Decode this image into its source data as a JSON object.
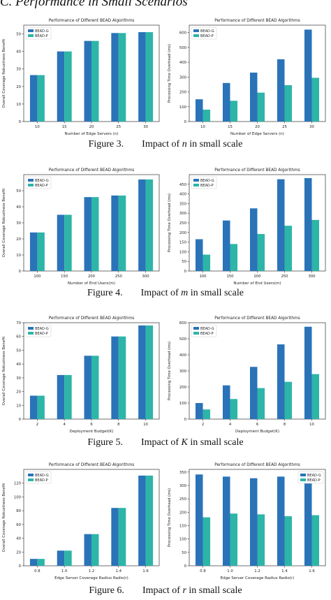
{
  "section_heading": "C.  Performance in Small Scenarios",
  "colors": {
    "bead_g": "#2a73b8",
    "bead_p": "#2db5a8"
  },
  "legend": [
    "BEAD-G",
    "BEAD-P"
  ],
  "figures": [
    {
      "label": "Figure 3.",
      "pre": "Impact of ",
      "var": "n",
      "post": " in small scale"
    },
    {
      "label": "Figure 4.",
      "pre": "Impact of ",
      "var": "m",
      "post": " in small scale"
    },
    {
      "label": "Figure 5.",
      "pre": "Impact of ",
      "var": "K",
      "post": " in small scale"
    },
    {
      "label": "Figure 6.",
      "pre": "Impact of ",
      "var": "r",
      "post": " in small scale"
    }
  ],
  "chart_data": [
    {
      "id": "fig3-benefit",
      "type": "bar",
      "title": "Performance of Different BEAD Algorithms",
      "xlabel": "Number of Edge Servers (n)",
      "ylabel": "Overall Coverage Robustness Benefit",
      "categories": [
        "10",
        "15",
        "20",
        "25",
        "30"
      ],
      "ylim": [
        0,
        55
      ],
      "yticks": [
        0,
        10,
        20,
        30,
        40,
        50
      ],
      "legend_position": "top-left",
      "series": [
        {
          "name": "BEAD-G",
          "values": [
            26.5,
            40,
            46,
            50.5,
            51
          ]
        },
        {
          "name": "BEAD-P",
          "values": [
            26.5,
            40,
            46,
            50.5,
            51
          ]
        }
      ]
    },
    {
      "id": "fig3-time",
      "type": "bar",
      "title": "Performance of Different BEAD Algorithms",
      "xlabel": "Number of Edge Servers (n)",
      "ylabel": "Processing Time Overhead (ms)",
      "categories": [
        "10",
        "15",
        "20",
        "25",
        "30"
      ],
      "ylim": [
        0,
        650
      ],
      "yticks": [
        0,
        100,
        200,
        300,
        400,
        500,
        600
      ],
      "legend_position": "top-left",
      "series": [
        {
          "name": "BEAD-G",
          "values": [
            150,
            260,
            330,
            420,
            620
          ]
        },
        {
          "name": "BEAD-P",
          "values": [
            80,
            140,
            195,
            245,
            295
          ]
        }
      ]
    },
    {
      "id": "fig4-benefit",
      "type": "bar",
      "title": "Performance of Different BEAD Algorithms",
      "xlabel": "Number of End Users(m)",
      "ylabel": "Overall Coverage Robustness Benefit",
      "categories": [
        "100",
        "150",
        "200",
        "250",
        "300"
      ],
      "ylim": [
        0,
        60
      ],
      "yticks": [
        0,
        10,
        20,
        30,
        40,
        50
      ],
      "legend_position": "top-left",
      "series": [
        {
          "name": "BEAD-G",
          "values": [
            24,
            35,
            46,
            47,
            57
          ]
        },
        {
          "name": "BEAD-P",
          "values": [
            24,
            35,
            46,
            47,
            57
          ]
        }
      ]
    },
    {
      "id": "fig4-time",
      "type": "bar",
      "title": "Performance of Different BEAD Algorithms",
      "xlabel": "Number of End Users(m)",
      "ylabel": "Processing Time Overhead (ms)",
      "categories": [
        "100",
        "150",
        "200",
        "250",
        "300"
      ],
      "ylim": [
        0,
        500
      ],
      "yticks": [
        0,
        50,
        100,
        150,
        200,
        250,
        300,
        350,
        400,
        450
      ],
      "legend_position": "top-left",
      "series": [
        {
          "name": "BEAD-G",
          "values": [
            165,
            262,
            325,
            476,
            482
          ]
        },
        {
          "name": "BEAD-P",
          "values": [
            85,
            140,
            192,
            235,
            265
          ]
        }
      ]
    },
    {
      "id": "fig5-benefit",
      "type": "bar",
      "title": "Performance of Different BEAD Algorithms",
      "xlabel": "Deployment Budget(K)",
      "ylabel": "Overall Coverage Robustness Benefit",
      "categories": [
        "2",
        "4",
        "6",
        "8",
        "10"
      ],
      "ylim": [
        0,
        70
      ],
      "yticks": [
        0,
        10,
        20,
        30,
        40,
        50,
        60,
        70
      ],
      "legend_position": "top-left",
      "series": [
        {
          "name": "BEAD-G",
          "values": [
            17,
            32,
            46,
            60,
            68
          ]
        },
        {
          "name": "BEAD-P",
          "values": [
            17,
            32,
            46,
            60,
            68
          ]
        }
      ]
    },
    {
      "id": "fig5-time",
      "type": "bar",
      "title": "Performance of Different BEAD Algorithms",
      "xlabel": "Deployment Budget(K)",
      "ylabel": "Processing Time Overhead (ms)",
      "categories": [
        "2",
        "4",
        "6",
        "8",
        "10"
      ],
      "ylim": [
        0,
        600
      ],
      "yticks": [
        0,
        100,
        200,
        300,
        400,
        500,
        600
      ],
      "legend_position": "top-left",
      "series": [
        {
          "name": "BEAD-G",
          "values": [
            100,
            210,
            325,
            465,
            575
          ]
        },
        {
          "name": "BEAD-P",
          "values": [
            60,
            125,
            193,
            232,
            280
          ]
        }
      ]
    },
    {
      "id": "fig6-benefit",
      "type": "bar",
      "title": "Performance of Different BEAD Algorithms",
      "xlabel": "Edge Server Coverage Radius Radio(r)",
      "ylabel": "Overall Coverage Robustness Benefit",
      "categories": [
        "0.8",
        "1.0",
        "1.2",
        "1.4",
        "1.6"
      ],
      "ylim": [
        0,
        140
      ],
      "yticks": [
        0,
        20,
        40,
        60,
        80,
        100,
        120
      ],
      "legend_position": "top-left",
      "series": [
        {
          "name": "BEAD-G",
          "values": [
            10,
            22,
            46,
            84,
            131
          ]
        },
        {
          "name": "BEAD-P",
          "values": [
            10,
            22,
            46,
            84,
            131
          ]
        }
      ]
    },
    {
      "id": "fig6-time",
      "type": "bar",
      "title": "Performance of Different BEAD Algorithms",
      "xlabel": "Edge Server Coverage Radius Radio(r)",
      "ylabel": "Processing Time Overhead (ms)",
      "categories": [
        "0.8",
        "1.0",
        "1.2",
        "1.4",
        "1.6"
      ],
      "ylim": [
        0,
        360
      ],
      "yticks": [
        0,
        50,
        100,
        150,
        200,
        250,
        300,
        350
      ],
      "legend_position": "top-right",
      "series": [
        {
          "name": "BEAD-G",
          "values": [
            341,
            333,
            327,
            333,
            318
          ]
        },
        {
          "name": "BEAD-P",
          "values": [
            181,
            195,
            192,
            185,
            189
          ]
        }
      ]
    }
  ]
}
